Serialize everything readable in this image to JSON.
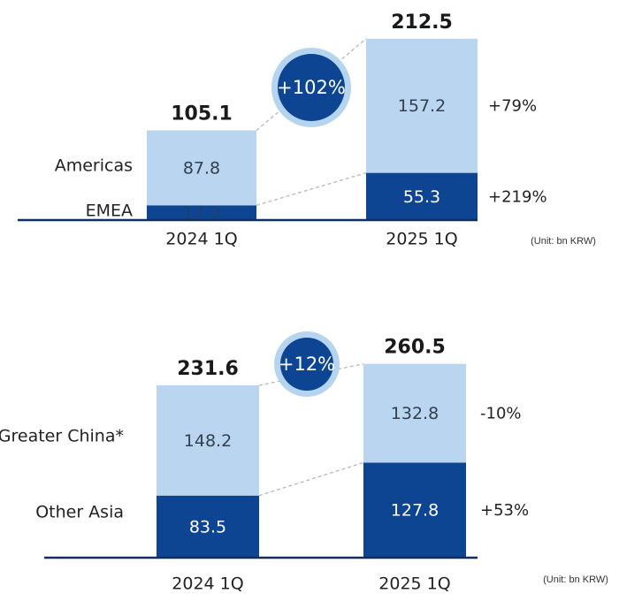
{
  "colors": {
    "light": "#b9d5ef",
    "dark": "#0e4592",
    "axis": "#0e2f63",
    "ring": "#b5d4ef"
  },
  "chart_data": [
    {
      "type": "bar",
      "stacked": true,
      "categories": [
        "2024 1Q",
        "2025 1Q"
      ],
      "series": [
        {
          "name": "EMEA",
          "values": [
            17.3,
            55.3
          ],
          "growth": "+219%"
        },
        {
          "name": "Americas",
          "values": [
            87.8,
            157.2
          ],
          "growth": "+79%"
        }
      ],
      "totals": [
        105.1,
        212.5
      ],
      "total_growth": "+102%",
      "unit": "(Unit: bn KRW)"
    },
    {
      "type": "bar",
      "stacked": true,
      "categories": [
        "2024 1Q",
        "2025 1Q"
      ],
      "series": [
        {
          "name": "Other Asia",
          "values": [
            83.5,
            127.8
          ],
          "growth": "+53%"
        },
        {
          "name": "Greater China*",
          "values": [
            148.2,
            132.8
          ],
          "growth": "-10%"
        }
      ],
      "totals": [
        231.6,
        260.5
      ],
      "total_growth": "+12%",
      "unit": "(Unit: bn KRW)"
    }
  ]
}
